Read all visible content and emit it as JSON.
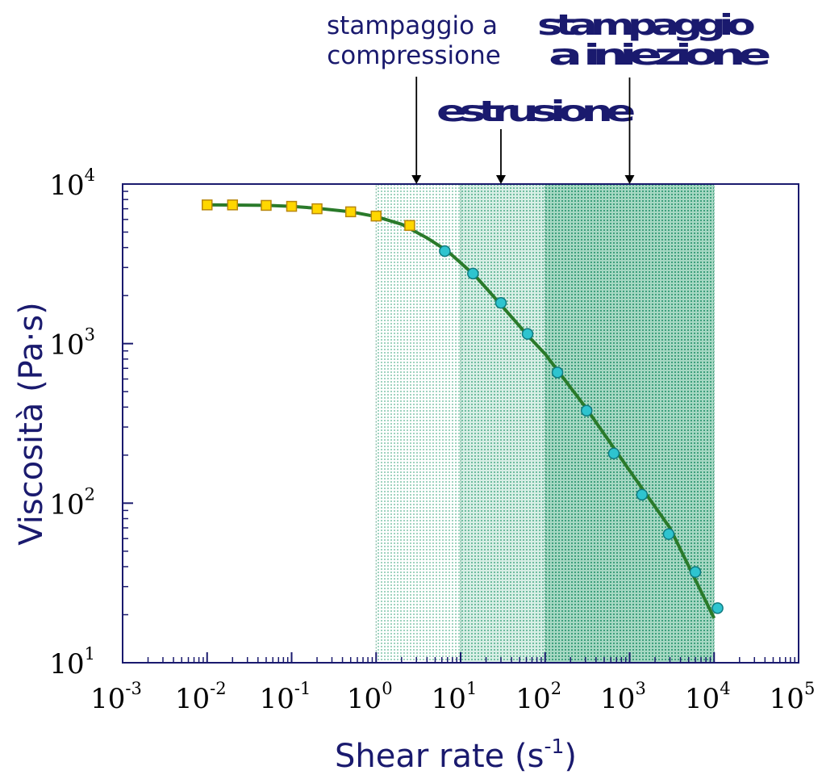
{
  "chart_data": {
    "type": "scatter",
    "xlabel": "Shear rate (s",
    "xlabel_sup": "-1",
    "xlabel_tail": ")",
    "ylabel": "Viscosità (Pa·s)",
    "x_scale": "log",
    "y_scale": "log",
    "xlim": [
      0.001,
      100000
    ],
    "ylim": [
      10,
      10000
    ],
    "x_ticks": [
      {
        "base": "10",
        "exp": "-3",
        "value": 0.001
      },
      {
        "base": "10",
        "exp": "-2",
        "value": 0.01
      },
      {
        "base": "10",
        "exp": "-1",
        "value": 0.1
      },
      {
        "base": "10",
        "exp": "0",
        "value": 1
      },
      {
        "base": "10",
        "exp": "1",
        "value": 10
      },
      {
        "base": "10",
        "exp": "2",
        "value": 100
      },
      {
        "base": "10",
        "exp": "3",
        "value": 1000
      },
      {
        "base": "10",
        "exp": "4",
        "value": 10000
      },
      {
        "base": "10",
        "exp": "5",
        "value": 100000
      }
    ],
    "y_ticks": [
      {
        "base": "10",
        "exp": "1",
        "value": 10
      },
      {
        "base": "10",
        "exp": "2",
        "value": 100
      },
      {
        "base": "10",
        "exp": "3",
        "value": 1000
      },
      {
        "base": "10",
        "exp": "4",
        "value": 10000
      }
    ],
    "shaded_regions": [
      {
        "x_from": 1,
        "x_to": 10,
        "color": "#cfe8dd"
      },
      {
        "x_from": 10,
        "x_to": 100,
        "color": "#a9d8c4"
      },
      {
        "x_from": 100,
        "x_to": 10000,
        "color": "#79c4a7"
      }
    ],
    "series": [
      {
        "marker": "square",
        "color": "#ffd700",
        "edge": "#b8860b",
        "points": [
          [
            0.01,
            7400
          ],
          [
            0.02,
            7400
          ],
          [
            0.05,
            7350
          ],
          [
            0.1,
            7250
          ],
          [
            0.2,
            7000
          ],
          [
            0.5,
            6700
          ],
          [
            1,
            6300
          ],
          [
            2.5,
            5500
          ]
        ]
      },
      {
        "marker": "circle",
        "color": "#2ec4cf",
        "edge": "#117a80",
        "points": [
          [
            6.5,
            3800
          ],
          [
            14,
            2750
          ],
          [
            30,
            1800
          ],
          [
            62,
            1150
          ],
          [
            140,
            660
          ],
          [
            310,
            380
          ],
          [
            650,
            205
          ],
          [
            1400,
            113
          ],
          [
            2900,
            64
          ],
          [
            6000,
            37
          ],
          [
            11000,
            22
          ]
        ]
      },
      {
        "marker": "line",
        "color": "#2a7a2a",
        "points": [
          [
            0.01,
            7400
          ],
          [
            0.05,
            7350
          ],
          [
            0.1,
            7250
          ],
          [
            0.2,
            7050
          ],
          [
            0.5,
            6700
          ],
          [
            1,
            6250
          ],
          [
            2,
            5600
          ],
          [
            4,
            4600
          ],
          [
            7,
            3800
          ],
          [
            15,
            2650
          ],
          [
            30,
            1750
          ],
          [
            60,
            1150
          ],
          [
            100,
            860
          ],
          [
            300,
            400
          ],
          [
            1000,
            160
          ],
          [
            3000,
            70
          ],
          [
            10000,
            19
          ]
        ]
      }
    ],
    "annotations": [
      {
        "line1": "stampaggio a",
        "line2": "compressione",
        "arrow_x": 3.0
      },
      {
        "line1": "estrusione",
        "arrow_x": 30
      },
      {
        "line1": "stampaggio",
        "line2": "a iniezione",
        "arrow_x": 1000
      }
    ]
  }
}
